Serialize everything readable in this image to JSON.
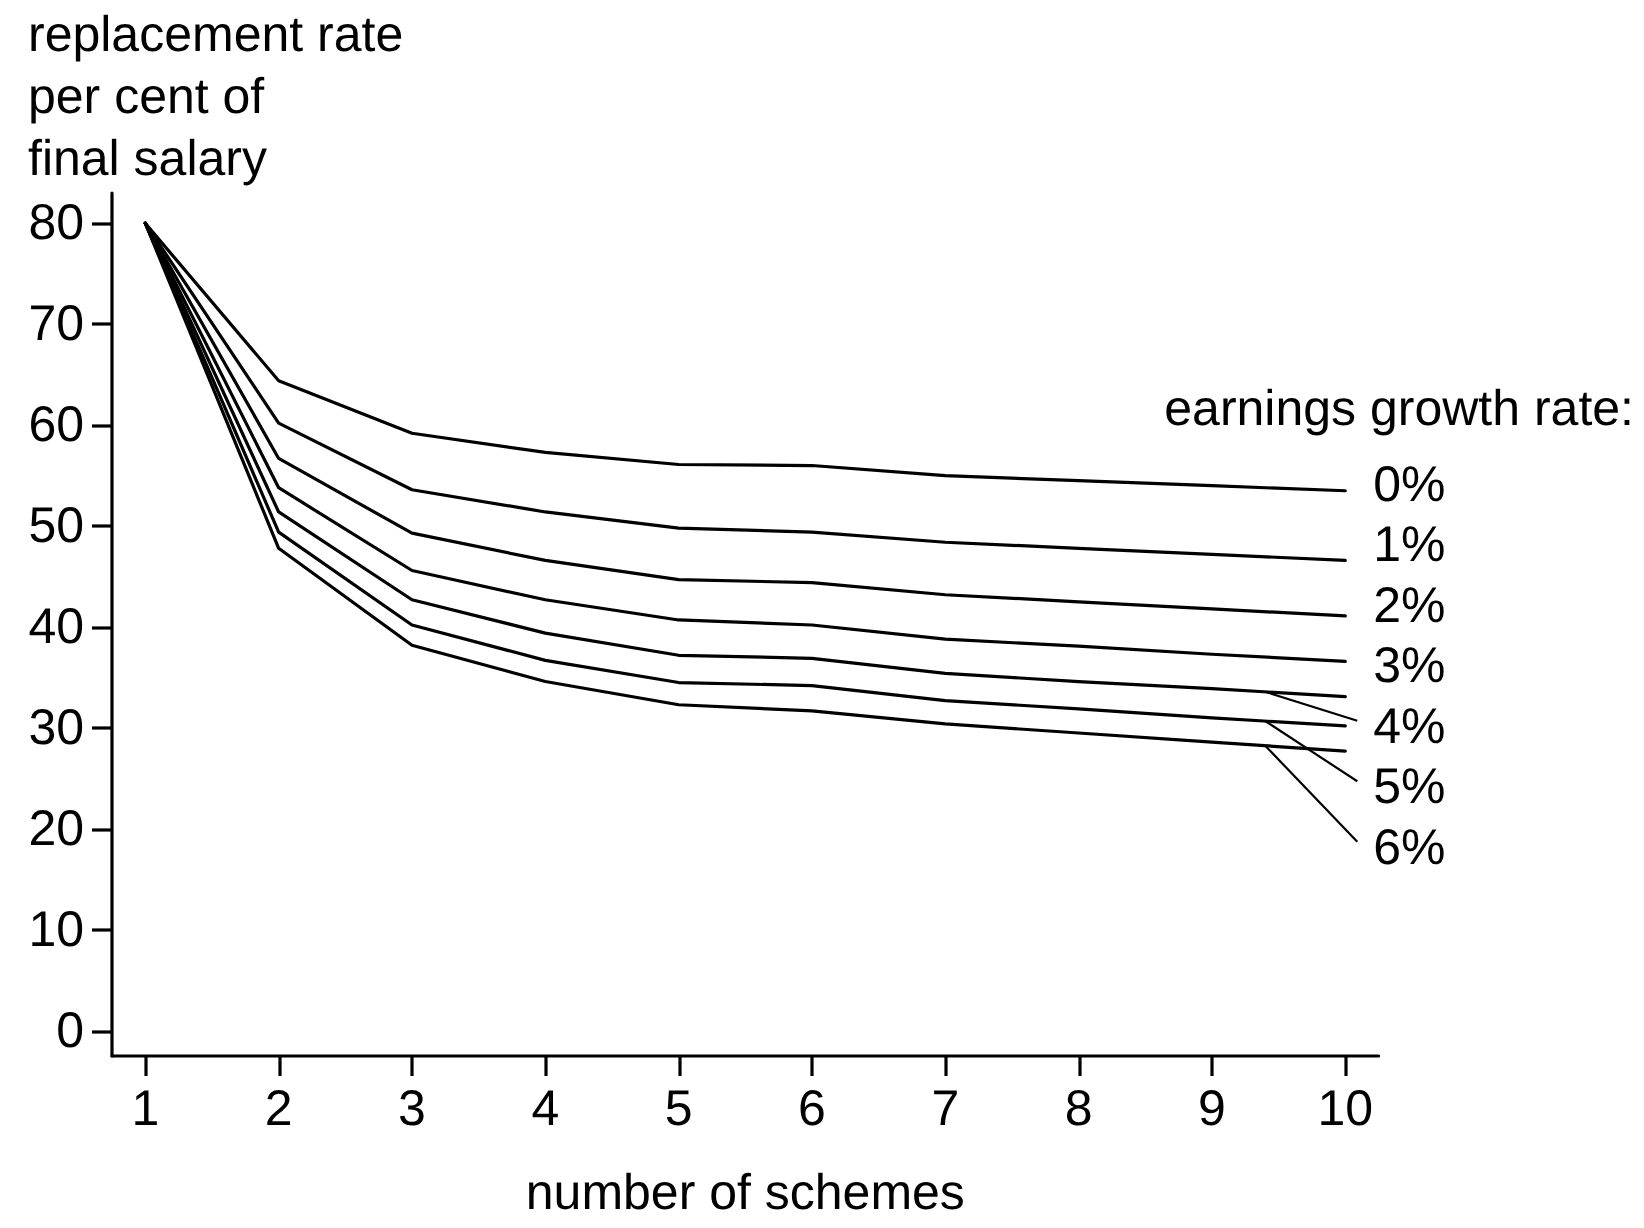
{
  "chart_data": {
    "type": "line",
    "xlabel": "number of schemes",
    "ylabel": "replacement rate\nper cent of\nfinal salary",
    "legend_title": "earnings growth rate:",
    "legend": "right",
    "x": [
      1,
      2,
      3,
      4,
      5,
      6,
      7,
      8,
      9,
      10
    ],
    "series": [
      {
        "name": "0%",
        "color": "#000000",
        "values": [
          80,
          64.4,
          59.2,
          57.3,
          56.1,
          56.0,
          55.0,
          54.5,
          54.0,
          53.5
        ]
      },
      {
        "name": "1%",
        "color": "#000000",
        "values": [
          80,
          60.2,
          53.6,
          51.4,
          49.8,
          49.4,
          48.4,
          47.8,
          47.2,
          46.6
        ]
      },
      {
        "name": "2%",
        "color": "#000000",
        "values": [
          80,
          56.7,
          49.3,
          46.6,
          44.7,
          44.4,
          43.2,
          42.5,
          41.8,
          41.1
        ]
      },
      {
        "name": "3%",
        "color": "#000000",
        "values": [
          80,
          53.8,
          45.6,
          42.7,
          40.7,
          40.2,
          38.8,
          38.1,
          37.3,
          36.6
        ]
      },
      {
        "name": "4%",
        "color": "#000000",
        "values": [
          80,
          51.4,
          42.7,
          39.4,
          37.2,
          36.9,
          35.4,
          34.6,
          33.9,
          33.1
        ]
      },
      {
        "name": "5%",
        "color": "#000000",
        "values": [
          80,
          49.4,
          40.2,
          36.7,
          34.5,
          34.2,
          32.7,
          31.9,
          31.0,
          30.2
        ]
      },
      {
        "name": "6%",
        "color": "#000000",
        "values": [
          80,
          47.8,
          38.2,
          34.6,
          32.3,
          31.7,
          30.4,
          29.5,
          28.6,
          27.7
        ]
      }
    ],
    "xlim": [
      0.75,
      10.25
    ],
    "xticks": [
      1,
      2,
      3,
      4,
      5,
      6,
      7,
      8,
      9,
      10
    ],
    "ylim": [
      -2.5,
      83
    ],
    "yticks": [
      0,
      10,
      20,
      30,
      40,
      50,
      60,
      70,
      80
    ],
    "marker": "none",
    "line_style": "solid"
  }
}
